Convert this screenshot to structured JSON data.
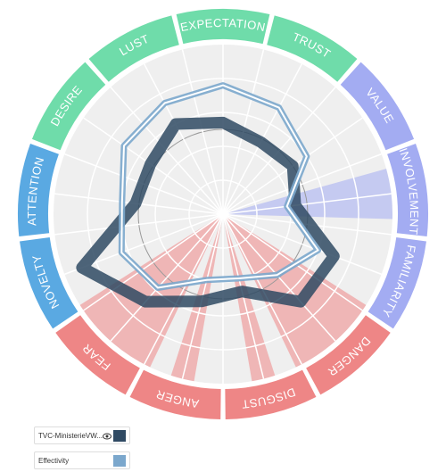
{
  "chart_data": {
    "type": "radar",
    "categories": [
      "EXPECTATION",
      "TRUST",
      "VALUE",
      "INVOLVEMENT",
      "FAMILIARITY",
      "DANGER",
      "DISGUST",
      "ANGER",
      "FEAR",
      "NOVELTY",
      "ATTENTION",
      "DESIRE",
      "LUST"
    ],
    "category_colors": [
      "#6fdcaa",
      "#6fdcaa",
      "#a3acf2",
      "#a3acf2",
      "#a3acf2",
      "#ee8686",
      "#ee8686",
      "#ee8686",
      "#ee8686",
      "#5aa9e2",
      "#5aa9e2",
      "#6fdcaa",
      "#6fdcaa"
    ],
    "rlim": [
      0,
      100
    ],
    "series": [
      {
        "name": "TVC-MinisterieVW...",
        "color": "#2f4a63",
        "values": [
          54,
          48,
          50,
          43,
          70,
          69,
          47,
          53,
          69,
          89,
          52,
          52,
          60
        ]
      },
      {
        "name": "Effectivity",
        "color": "#7ba7cc",
        "values": [
          76,
          71,
          60,
          38,
          60,
          48,
          39,
          40,
          58,
          64,
          60,
          71,
          74
        ]
      }
    ]
  }
}
